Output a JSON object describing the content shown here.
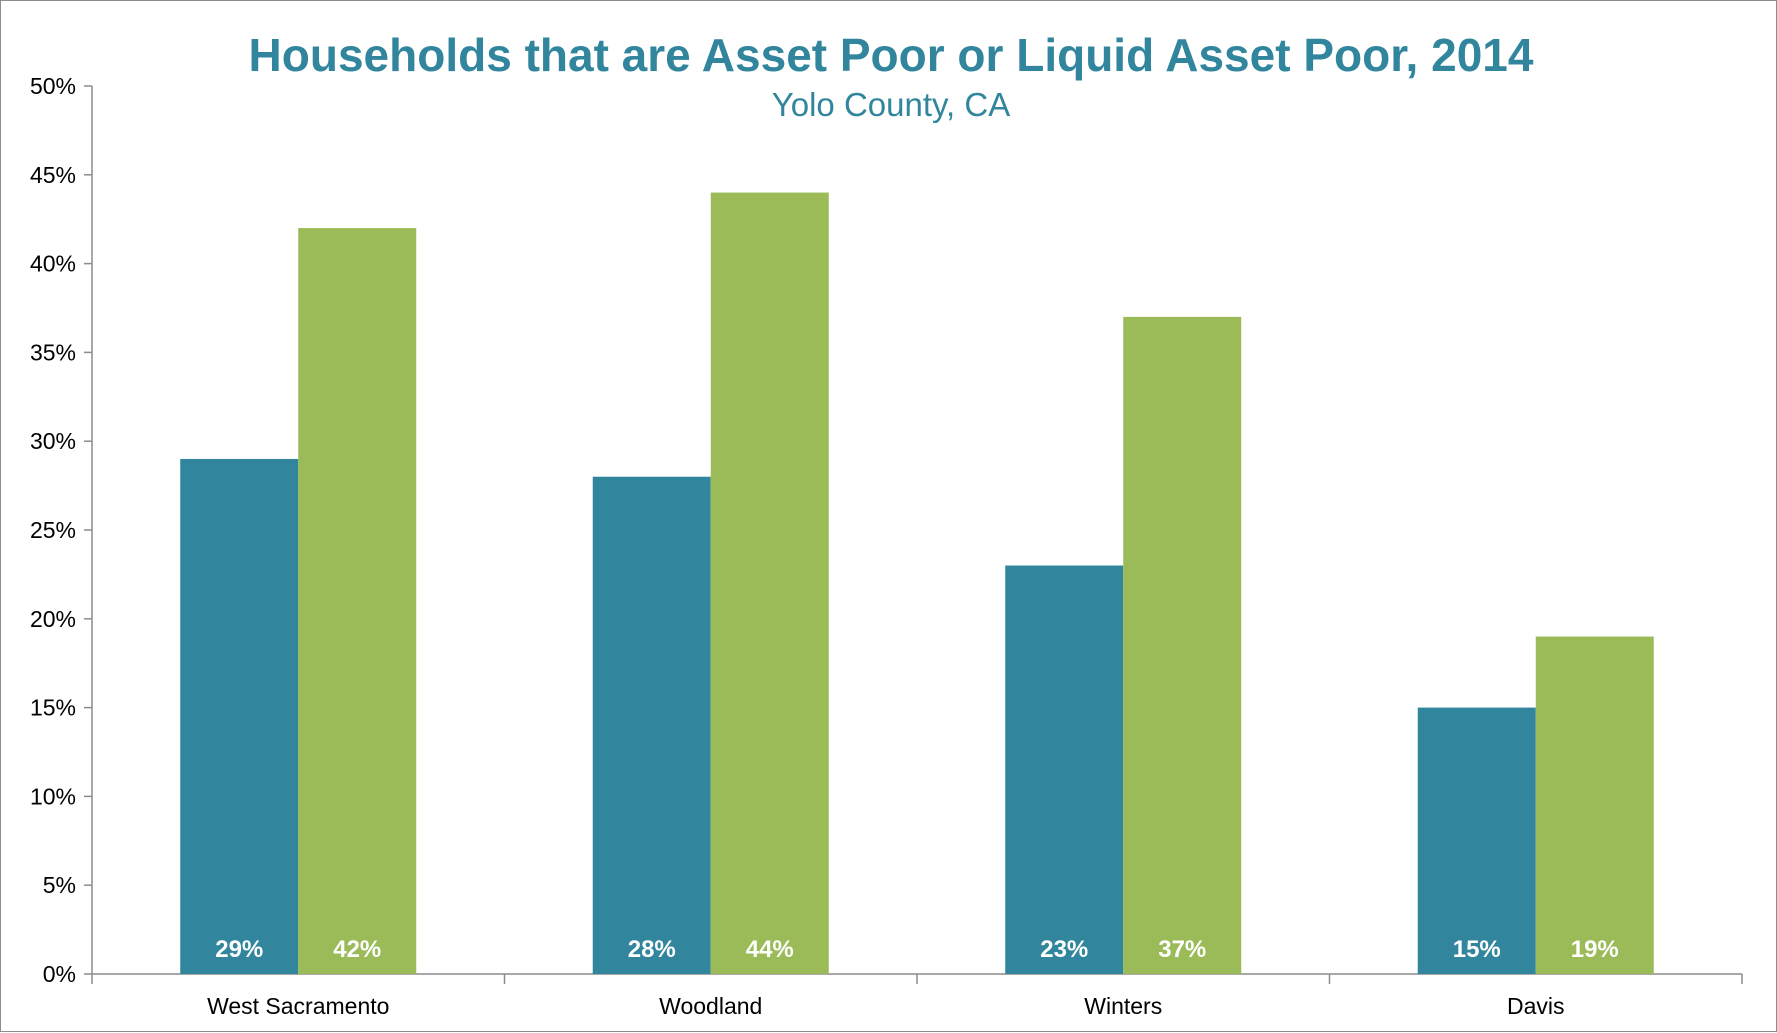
{
  "chart_data": {
    "type": "bar",
    "title": "Households that are Asset Poor or Liquid Asset Poor, 2014",
    "subtitle": "Yolo County, CA",
    "xlabel": "",
    "ylabel": "",
    "categories": [
      "West Sacramento",
      "Woodland",
      "Winters",
      "Davis"
    ],
    "series": [
      {
        "color": "#31859c",
        "values": [
          29,
          28,
          23,
          15
        ],
        "labels": [
          "29%",
          "28%",
          "23%",
          "15%"
        ]
      },
      {
        "color": "#9bbb59",
        "values": [
          42,
          44,
          37,
          19
        ],
        "labels": [
          "42%",
          "44%",
          "37%",
          "19%"
        ]
      }
    ],
    "ylim": [
      0,
      50
    ],
    "yticks": [
      0,
      5,
      10,
      15,
      20,
      25,
      30,
      35,
      40,
      45,
      50
    ],
    "ytick_labels": [
      "0%",
      "5%",
      "10%",
      "15%",
      "20%",
      "25%",
      "30%",
      "35%",
      "40%",
      "45%",
      "50%"
    ],
    "grid": false,
    "legend": "none",
    "title_color": "#31859c"
  }
}
